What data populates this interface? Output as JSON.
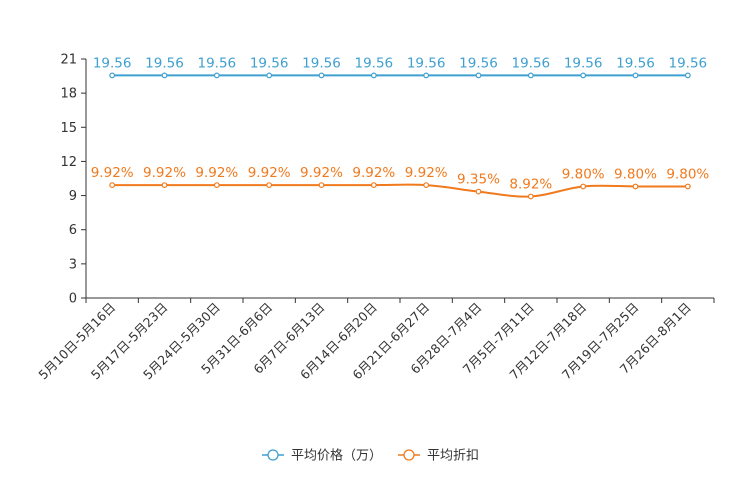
{
  "chart_data": {
    "type": "line",
    "categories": [
      "5月10日-5月16日",
      "5月17日-5月23日",
      "5月24日-5月30日",
      "5月31日-6月6日",
      "6月7日-6月13日",
      "6月14日-6月20日",
      "6月21日-6月27日",
      "6月28日-7月4日",
      "7月5日-7月11日",
      "7月12日-7月18日",
      "7月19日-7月25日",
      "7月26日-8月1日"
    ],
    "ylim": [
      0,
      21
    ],
    "yticks": [
      0,
      3,
      6,
      9,
      12,
      15,
      18,
      21
    ],
    "series": [
      {
        "name": "平均价格（万）",
        "color": "#3fa0d0",
        "values": [
          19.56,
          19.56,
          19.56,
          19.56,
          19.56,
          19.56,
          19.56,
          19.56,
          19.56,
          19.56,
          19.56,
          19.56
        ],
        "labels": [
          "19.56",
          "19.56",
          "19.56",
          "19.56",
          "19.56",
          "19.56",
          "19.56",
          "19.56",
          "19.56",
          "19.56",
          "19.56",
          "19.56"
        ]
      },
      {
        "name": "平均折扣",
        "color": "#f07a1e",
        "values": [
          9.92,
          9.92,
          9.92,
          9.92,
          9.92,
          9.92,
          9.92,
          9.35,
          8.92,
          9.8,
          9.8,
          9.8
        ],
        "labels": [
          "9.92%",
          "9.92%",
          "9.92%",
          "9.92%",
          "9.92%",
          "9.92%",
          "9.92%",
          "9.35%",
          "8.92%",
          "9.80%",
          "9.80%",
          "9.80%"
        ]
      }
    ],
    "grid": false,
    "legend_position": "bottom-center"
  }
}
